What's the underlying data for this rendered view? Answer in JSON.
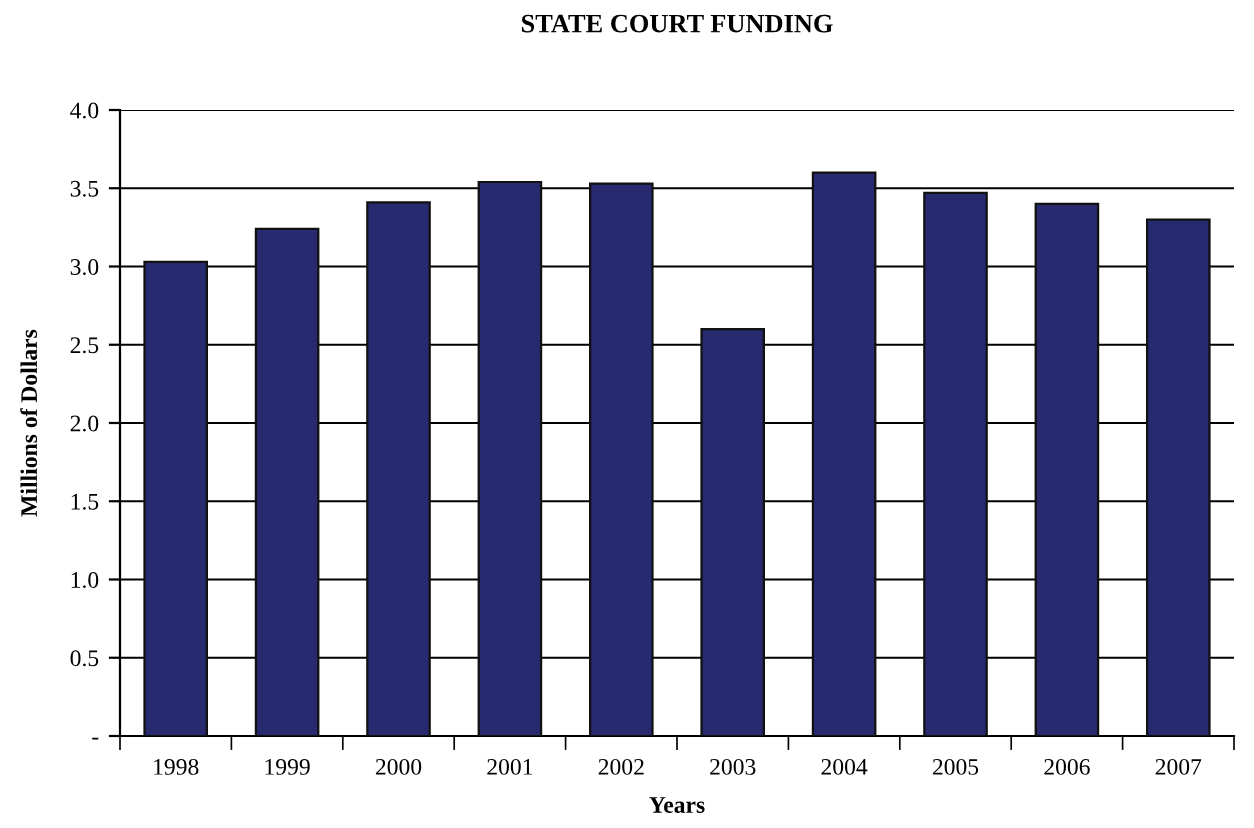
{
  "chart_data": {
    "type": "bar",
    "title": "STATE COURT FUNDING",
    "xlabel": "Years",
    "ylabel": "Millions of Dollars",
    "categories": [
      "1998",
      "1999",
      "2000",
      "2001",
      "2002",
      "2003",
      "2004",
      "2005",
      "2006",
      "2007"
    ],
    "values": [
      3.03,
      3.24,
      3.41,
      3.54,
      3.53,
      2.6,
      3.6,
      3.47,
      3.4,
      3.3
    ],
    "color": "#272a6e",
    "ylim": [
      0,
      4.0
    ],
    "yticks": [
      {
        "value": 0,
        "label": "-"
      },
      {
        "value": 0.5,
        "label": "0.5"
      },
      {
        "value": 1.0,
        "label": "1.0"
      },
      {
        "value": 1.5,
        "label": "1.5"
      },
      {
        "value": 2.0,
        "label": "2.0"
      },
      {
        "value": 2.5,
        "label": "2.5"
      },
      {
        "value": 3.0,
        "label": "3.0"
      },
      {
        "value": 3.5,
        "label": "3.5"
      },
      {
        "value": 4.0,
        "label": "4.0"
      }
    ],
    "grid": "y",
    "legend": false
  }
}
